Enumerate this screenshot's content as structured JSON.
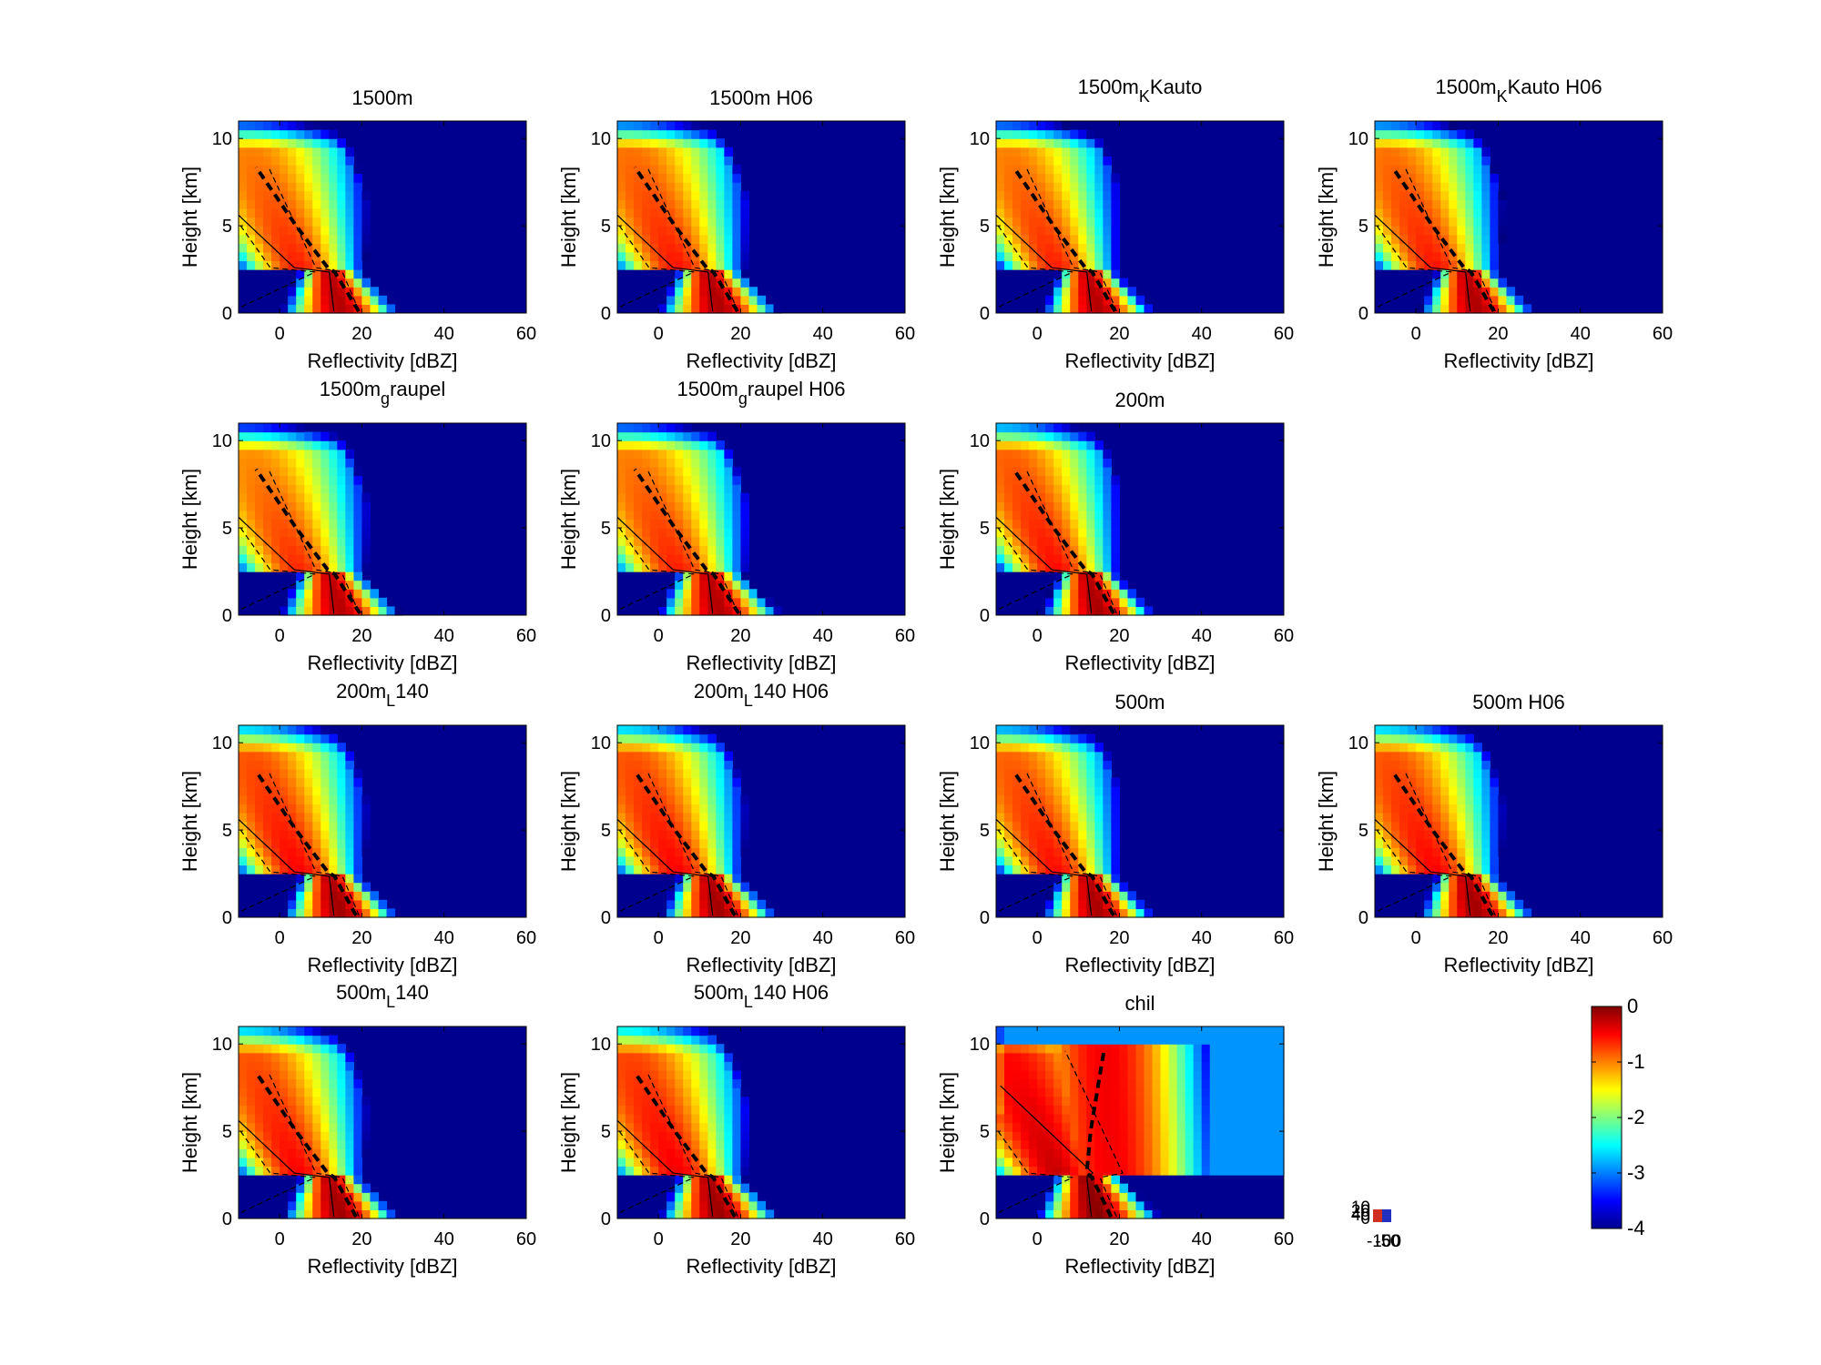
{
  "figure": {
    "xticks": [
      "0",
      "20",
      "40",
      "60"
    ],
    "yticks": [
      "0",
      "5",
      "10"
    ],
    "xlabel": "Reflectivity [dBZ]",
    "ylabel": "Height [km]",
    "colorbar_ticks": [
      "0",
      "-1",
      "-2",
      "-3",
      "-4"
    ],
    "stray_tick_labels": [
      "10",
      "20",
      "40",
      "0",
      "-100",
      "-50",
      "50"
    ]
  },
  "chart_data": {
    "type": "heatmap",
    "xlim": [
      -10,
      60
    ],
    "ylim": [
      0,
      11
    ],
    "clim": [
      -4,
      0
    ],
    "colormap": "jet",
    "background_color": "#00008f",
    "panels": [
      {
        "id": "p1",
        "title": "1500m",
        "row": 0,
        "col": 0,
        "spread": 1.0,
        "intensity": 1.0,
        "lowband": 0.3
      },
      {
        "id": "p2",
        "title": "1500m H06",
        "row": 0,
        "col": 1,
        "spread": 1.0,
        "intensity": 1.05,
        "lowband": 0.35
      },
      {
        "id": "p3",
        "title": "1500m",
        "sub": "K",
        "rest": "Kauto",
        "row": 0,
        "col": 2,
        "spread": 0.95,
        "intensity": 1.0,
        "lowband": 0.45
      },
      {
        "id": "p4",
        "title": "1500m",
        "sub": "K",
        "rest": "Kauto H06",
        "row": 0,
        "col": 3,
        "spread": 0.95,
        "intensity": 1.05,
        "lowband": 0.45
      },
      {
        "id": "p5",
        "title": "1500m",
        "sub": "g",
        "rest": "raupel",
        "row": 1,
        "col": 0,
        "spread": 1.05,
        "intensity": 0.95,
        "lowband": 0.35
      },
      {
        "id": "p6",
        "title": "1500m",
        "sub": "g",
        "rest": "raupel H06",
        "row": 1,
        "col": 1,
        "spread": 1.05,
        "intensity": 1.0,
        "lowband": 0.35
      },
      {
        "id": "p7",
        "title": "200m",
        "row": 1,
        "col": 2,
        "spread": 0.9,
        "intensity": 1.1,
        "lowband": 0.55
      },
      {
        "id": "p8",
        "title": "200m",
        "sub": "L",
        "rest": "140",
        "row": 2,
        "col": 0,
        "spread": 0.9,
        "intensity": 1.15,
        "lowband": 0.6
      },
      {
        "id": "p9",
        "title": "200m",
        "sub": "L",
        "rest": "140 H06",
        "row": 2,
        "col": 1,
        "spread": 0.9,
        "intensity": 1.15,
        "lowband": 0.6
      },
      {
        "id": "p10",
        "title": "500m",
        "row": 2,
        "col": 2,
        "spread": 0.9,
        "intensity": 1.1,
        "lowband": 0.55
      },
      {
        "id": "p11",
        "title": "500m H06",
        "row": 2,
        "col": 3,
        "spread": 0.9,
        "intensity": 1.15,
        "lowband": 0.55
      },
      {
        "id": "p12",
        "title": "500m",
        "sub": "L",
        "rest": "140",
        "row": 3,
        "col": 0,
        "spread": 0.9,
        "intensity": 1.15,
        "lowband": 0.55
      },
      {
        "id": "p13",
        "title": "500m",
        "sub": "L",
        "rest": "140 H06",
        "row": 3,
        "col": 1,
        "spread": 0.9,
        "intensity": 1.2,
        "lowband": 0.55
      },
      {
        "id": "p14",
        "title": "chil",
        "row": 3,
        "col": 2,
        "spread": 0.8,
        "intensity": 1.4,
        "lowband": 0.4,
        "observed": true
      }
    ]
  }
}
